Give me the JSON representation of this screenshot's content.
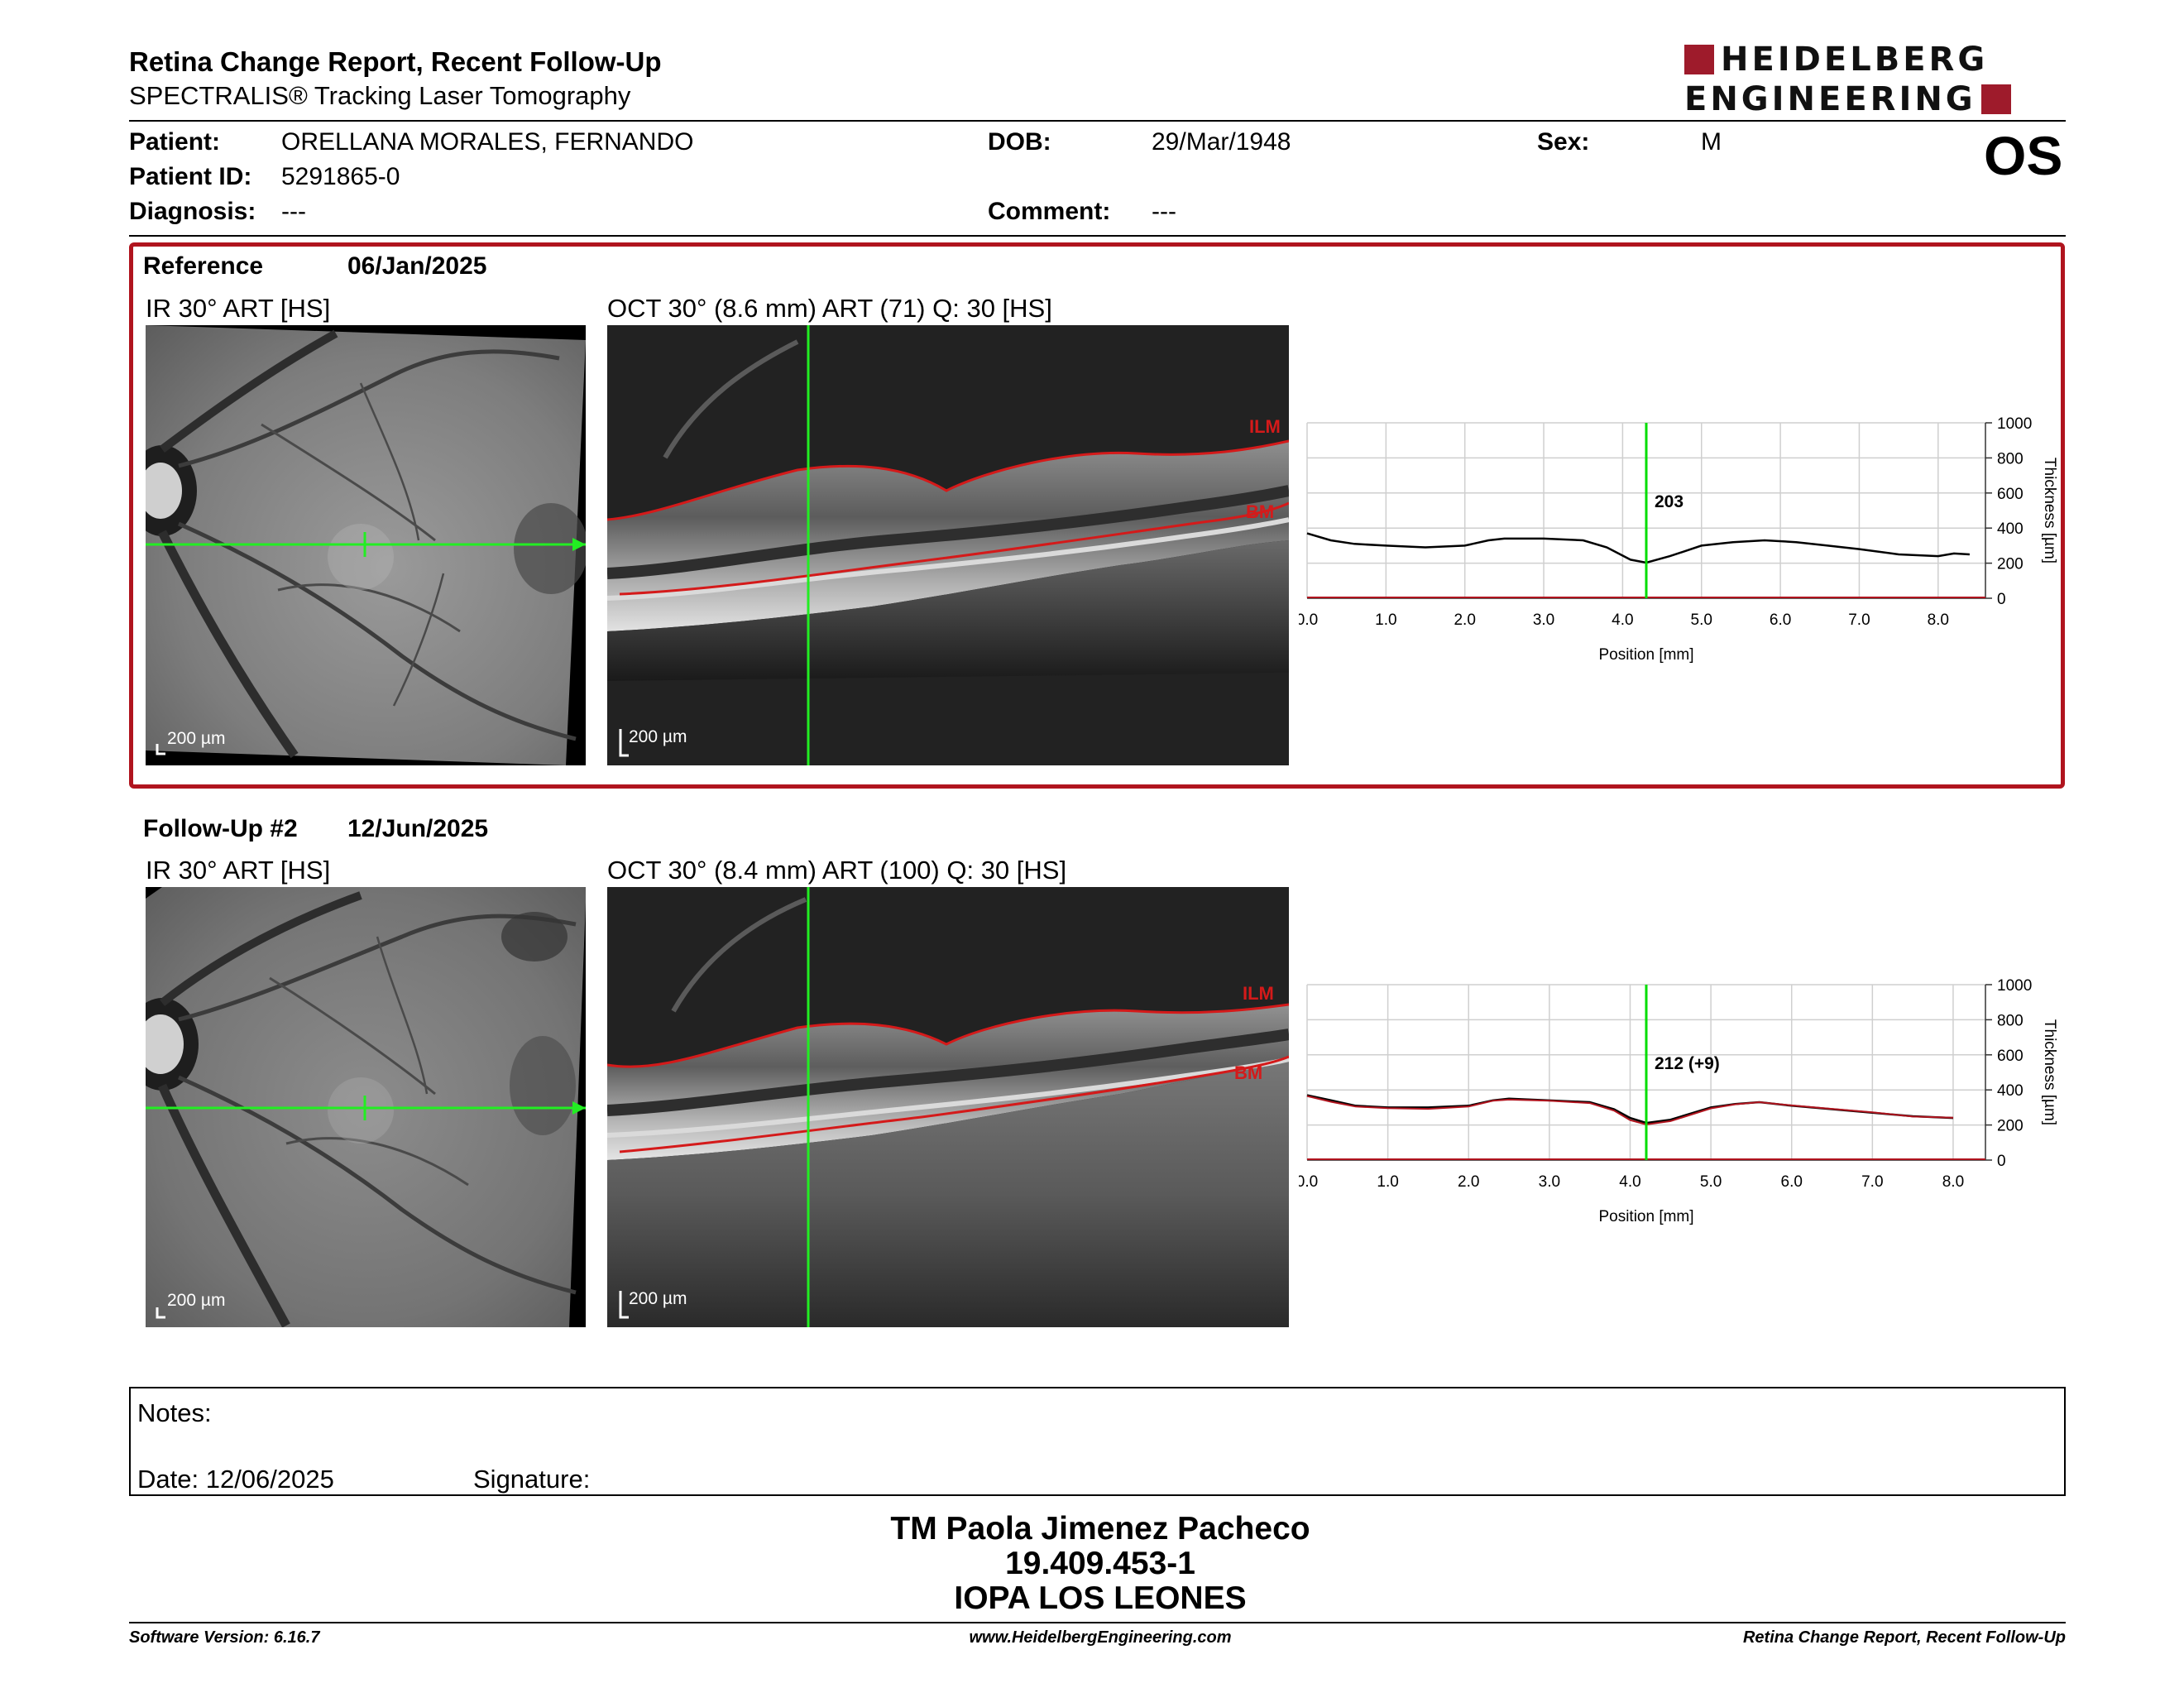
{
  "header": {
    "title": "Retina Change Report, Recent Follow-Up",
    "subtitle": "SPECTRALIS® Tracking Laser Tomography",
    "logo_line1": "HEIDELBERG",
    "logo_line2": "ENGINEERING",
    "eye": "OS",
    "brand_color": "#9e1b2b"
  },
  "patient": {
    "patient_label": "Patient:",
    "patient_value": "ORELLANA MORALES, FERNANDO",
    "id_label": "Patient ID:",
    "id_value": "5291865-0",
    "diagnosis_label": "Diagnosis:",
    "diagnosis_value": "---",
    "dob_label": "DOB:",
    "dob_value": "29/Mar/1948",
    "comment_label": "Comment:",
    "comment_value": "---",
    "sex_label": "Sex:",
    "sex_value": "M"
  },
  "reference": {
    "label": "Reference",
    "date": "06/Jan/2025",
    "ir_caption": "IR 30° ART [HS]",
    "oct_caption": "OCT 30° (8.6 mm) ART (71) Q: 30 [HS]",
    "ir_scale": "200 µm",
    "oct_scale": "200 µm",
    "ilm": "ILM",
    "bm": "BM",
    "highlight_color": "#b0141e"
  },
  "followup": {
    "label": "Follow-Up #2",
    "date": "12/Jun/2025",
    "ir_caption": "IR 30° ART [HS]",
    "oct_caption": "OCT 30° (8.4 mm) ART (100) Q: 30 [HS]",
    "ir_scale": "200 µm",
    "oct_scale": "200 µm",
    "ilm": "ILM",
    "bm": "BM"
  },
  "chart_data": [
    {
      "type": "line",
      "xlabel": "Position [mm]",
      "ylabel": "Thickness [µm]",
      "xlim": [
        0,
        8.6
      ],
      "ylim": [
        0,
        1000
      ],
      "x_ticks": [
        "0.0",
        "1.0",
        "2.0",
        "3.0",
        "4.0",
        "5.0",
        "6.0",
        "7.0",
        "8.0"
      ],
      "y_ticks": [
        "0",
        "200",
        "400",
        "600",
        "800",
        "1000"
      ],
      "grid": true,
      "cursor_x": 4.3,
      "cursor_label": "203",
      "cursor_color": "#00dd00",
      "series": [
        {
          "color": "#000000",
          "x": [
            0.0,
            0.3,
            0.6,
            1.0,
            1.5,
            2.0,
            2.3,
            2.5,
            3.0,
            3.5,
            3.8,
            4.1,
            4.3,
            4.6,
            5.0,
            5.4,
            5.8,
            6.2,
            6.6,
            7.0,
            7.5,
            8.0,
            8.2,
            8.4
          ],
          "y": [
            370,
            330,
            310,
            300,
            290,
            300,
            330,
            340,
            340,
            330,
            290,
            220,
            203,
            240,
            300,
            320,
            330,
            320,
            300,
            280,
            250,
            240,
            255,
            250
          ]
        }
      ]
    },
    {
      "type": "line",
      "xlabel": "Position [mm]",
      "ylabel": "Thickness [µm]",
      "xlim": [
        0,
        8.4
      ],
      "ylim": [
        0,
        1000
      ],
      "x_ticks": [
        "0.0",
        "1.0",
        "2.0",
        "3.0",
        "4.0",
        "5.0",
        "6.0",
        "7.0",
        "8.0"
      ],
      "y_ticks": [
        "0",
        "200",
        "400",
        "600",
        "800",
        "1000"
      ],
      "grid": true,
      "cursor_x": 4.2,
      "cursor_label": "212 (+9)",
      "cursor_color": "#00dd00",
      "series": [
        {
          "color": "#000000",
          "x": [
            0.0,
            0.3,
            0.6,
            1.0,
            1.5,
            2.0,
            2.3,
            2.5,
            3.0,
            3.5,
            3.8,
            4.0,
            4.2,
            4.5,
            5.0,
            5.3,
            5.6,
            6.0,
            6.5,
            7.0,
            7.5,
            8.0
          ],
          "y": [
            370,
            340,
            310,
            300,
            300,
            310,
            340,
            350,
            340,
            330,
            290,
            240,
            212,
            230,
            300,
            320,
            330,
            310,
            290,
            270,
            250,
            240
          ]
        },
        {
          "color": "#b0141e",
          "x": [
            0.0,
            0.3,
            0.6,
            1.0,
            1.5,
            2.0,
            2.3,
            2.5,
            3.0,
            3.5,
            3.8,
            4.0,
            4.2,
            4.5,
            5.0,
            5.3,
            5.6,
            6.0,
            6.5,
            7.0,
            7.5,
            8.0
          ],
          "y": [
            365,
            332,
            305,
            296,
            292,
            305,
            338,
            345,
            338,
            325,
            282,
            228,
            203,
            222,
            295,
            318,
            330,
            312,
            292,
            272,
            248,
            242
          ]
        }
      ]
    }
  ],
  "notes": {
    "label": "Notes:",
    "date_label": "Date: 12/06/2025",
    "signature_label": "Signature:"
  },
  "signer": {
    "name": "TM Paola Jimenez Pacheco",
    "rut": "19.409.453-1",
    "institution": "IOPA LOS LEONES"
  },
  "footer": {
    "software": "Software Version: 6.16.7",
    "website": "www.HeidelbergEngineering.com",
    "report": "Retina Change Report, Recent Follow-Up"
  }
}
